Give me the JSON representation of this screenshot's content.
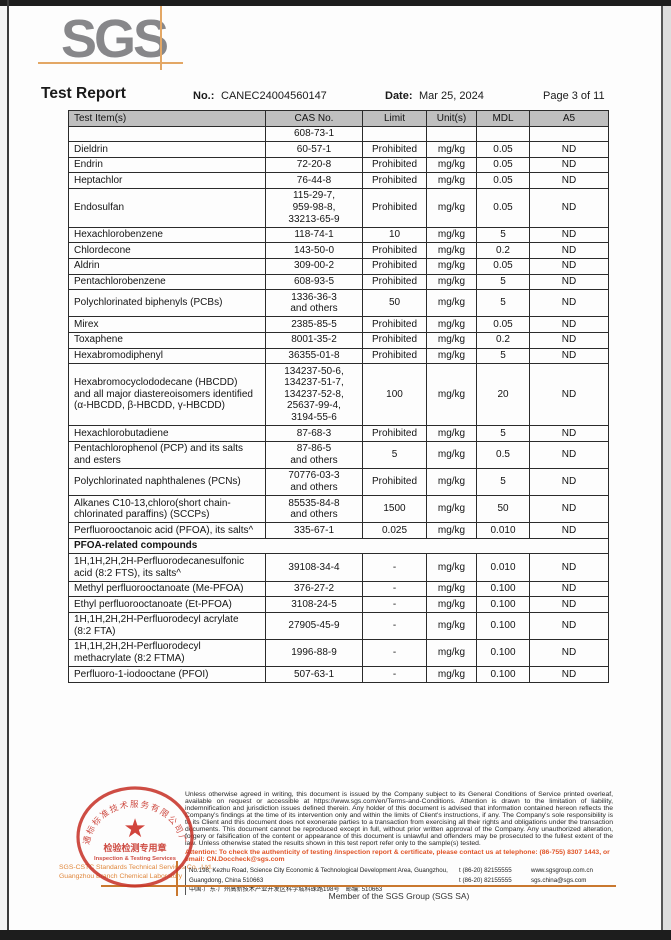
{
  "logo": {
    "text": "SGS"
  },
  "header": {
    "title": "Test Report",
    "no_label": "No.:",
    "no_value": "CANEC24004560147",
    "date_label": "Date:",
    "date_value": "Mar 25, 2024",
    "page_label": "Page 3 of 11"
  },
  "table": {
    "columns": [
      "Test Item(s)",
      "CAS No.",
      "Limit",
      "Unit(s)",
      "MDL",
      "A5"
    ],
    "rows": [
      {
        "item": "",
        "cas": "608-73-1",
        "limit": "",
        "unit": "",
        "mdl": "",
        "a5": ""
      },
      {
        "item": "Dieldrin",
        "cas": "60-57-1",
        "limit": "Prohibited",
        "unit": "mg/kg",
        "mdl": "0.05",
        "a5": "ND"
      },
      {
        "item": "Endrin",
        "cas": "72-20-8",
        "limit": "Prohibited",
        "unit": "mg/kg",
        "mdl": "0.05",
        "a5": "ND"
      },
      {
        "item": "Heptachlor",
        "cas": "76-44-8",
        "limit": "Prohibited",
        "unit": "mg/kg",
        "mdl": "0.05",
        "a5": "ND"
      },
      {
        "item": "Endosulfan",
        "cas": "115-29-7,\n959-98-8,\n33213-65-9",
        "limit": "Prohibited",
        "unit": "mg/kg",
        "mdl": "0.05",
        "a5": "ND"
      },
      {
        "item": "Hexachlorobenzene",
        "cas": "118-74-1",
        "limit": "10",
        "unit": "mg/kg",
        "mdl": "5",
        "a5": "ND"
      },
      {
        "item": "Chlordecone",
        "cas": "143-50-0",
        "limit": "Prohibited",
        "unit": "mg/kg",
        "mdl": "0.2",
        "a5": "ND"
      },
      {
        "item": "Aldrin",
        "cas": "309-00-2",
        "limit": "Prohibited",
        "unit": "mg/kg",
        "mdl": "0.05",
        "a5": "ND"
      },
      {
        "item": "Pentachlorobenzene",
        "cas": "608-93-5",
        "limit": "Prohibited",
        "unit": "mg/kg",
        "mdl": "5",
        "a5": "ND"
      },
      {
        "item": "Polychlorinated biphenyls (PCBs)",
        "cas": "1336-36-3\nand others",
        "limit": "50",
        "unit": "mg/kg",
        "mdl": "5",
        "a5": "ND"
      },
      {
        "item": "Mirex",
        "cas": "2385-85-5",
        "limit": "Prohibited",
        "unit": "mg/kg",
        "mdl": "0.05",
        "a5": "ND"
      },
      {
        "item": "Toxaphene",
        "cas": "8001-35-2",
        "limit": "Prohibited",
        "unit": "mg/kg",
        "mdl": "0.2",
        "a5": "ND"
      },
      {
        "item": "Hexabromodiphenyl",
        "cas": "36355-01-8",
        "limit": "Prohibited",
        "unit": "mg/kg",
        "mdl": "5",
        "a5": "ND"
      },
      {
        "item": "Hexabromocyclododecane (HBCDD)\nand all major diastereoisomers identified\n(α-HBCDD, β-HBCDD, γ-HBCDD)",
        "cas": "134237-50-6,\n134237-51-7,\n134237-52-8,\n25637-99-4,\n3194-55-6",
        "limit": "100",
        "unit": "mg/kg",
        "mdl": "20",
        "a5": "ND"
      },
      {
        "item": "Hexachlorobutadiene",
        "cas": "87-68-3",
        "limit": "Prohibited",
        "unit": "mg/kg",
        "mdl": "5",
        "a5": "ND"
      },
      {
        "item": "Pentachlorophenol (PCP) and its salts\nand esters",
        "cas": "87-86-5\nand others",
        "limit": "5",
        "unit": "mg/kg",
        "mdl": "0.5",
        "a5": "ND"
      },
      {
        "item": "Polychlorinated naphthalenes (PCNs)",
        "cas": "70776-03-3\nand others",
        "limit": "Prohibited",
        "unit": "mg/kg",
        "mdl": "5",
        "a5": "ND"
      },
      {
        "item": "Alkanes C10-13,chloro(short chain-\nchlorinated paraffins) (SCCPs)",
        "cas": "85535-84-8\nand others",
        "limit": "1500",
        "unit": "mg/kg",
        "mdl": "50",
        "a5": "ND"
      },
      {
        "item": "Perfluorooctanoic acid (PFOA), its salts^",
        "cas": "335-67-1",
        "limit": "0.025",
        "unit": "mg/kg",
        "mdl": "0.010",
        "a5": "ND"
      },
      {
        "section": "PFOA-related compounds"
      },
      {
        "item": "1H,1H,2H,2H-Perfluorodecanesulfonic\nacid (8:2 FTS), its salts^",
        "cas": "39108-34-4",
        "limit": "-",
        "unit": "mg/kg",
        "mdl": "0.010",
        "a5": "ND"
      },
      {
        "item": "Methyl perfluorooctanoate (Me-PFOA)",
        "cas": "376-27-2",
        "limit": "-",
        "unit": "mg/kg",
        "mdl": "0.100",
        "a5": "ND"
      },
      {
        "item": "Ethyl perfluorooctanoate (Et-PFOA)",
        "cas": "3108-24-5",
        "limit": "-",
        "unit": "mg/kg",
        "mdl": "0.100",
        "a5": "ND"
      },
      {
        "item": "1H,1H,2H,2H-Perfluorodecyl acrylate\n(8:2 FTA)",
        "cas": "27905-45-9",
        "limit": "-",
        "unit": "mg/kg",
        "mdl": "0.100",
        "a5": "ND"
      },
      {
        "item": "1H,1H,2H,2H-Perfluorodecyl\nmethacrylate (8:2 FTMA)",
        "cas": "1996-88-9",
        "limit": "-",
        "unit": "mg/kg",
        "mdl": "0.100",
        "a5": "ND"
      },
      {
        "item": "Perfluoro-1-iodooctane (PFOI)",
        "cas": "507-63-1",
        "limit": "-",
        "unit": "mg/kg",
        "mdl": "0.100",
        "a5": "ND"
      }
    ]
  },
  "footer": {
    "disclaimer": "Unless otherwise agreed in writing, this document is issued by the Company subject to its General Conditions of Service printed overleaf, available on request or accessible at https://www.sgs.com/en/Terms-and-Conditions. Attention is drawn to the limitation of liability, indemnification and jurisdiction issues defined therein. Any holder of this document is advised that information contained hereon reflects the Company's findings at the time of its intervention only and within the limits of Client's instructions, if any. The Company's sole responsibility is to its Client and this document does not exonerate parties to a transaction from exercising all their rights and obligations under the transaction documents. This document cannot be reproduced except in full, without prior written approval of the Company. Any unauthorized alteration, forgery or falsification of the content or appearance of this document is unlawful and offenders may be prosecuted to the fullest extent of the law. Unless otherwise stated the results shown in this test report refer only to the sample(s) tested.",
    "attention": "Attention: To check the authenticity of testing /inspection report & certificate, please contact us at telephone: (86-755) 8307 1443, or email: CN.Doccheck@sgs.com",
    "company_en_1": "SGS-CSTC Standards Technical Services Co., Ltd.",
    "company_en_2": "Guangzhou Branch  Chemical Laboratory",
    "address_en": "No.198, Kezhu Road, Science City Economic & Technological Development Area, Guangzhou, Guangdong, China 510663",
    "address_cn": "中国·广东·广州高新技术产业开发区科学城科珠路198号　邮编: 510663",
    "tel_en": "t (86-20) 82155555",
    "tel_cn": "t (86-20) 82155555",
    "website": "www.sgsgroup.com.cn",
    "email": "sgs.china@sgs.com",
    "member": "Member of the SGS Group (SGS SA)",
    "stamp_ring": "通标标准技术服务有限公司广州分公司",
    "stamp_cn": "检验检测专用章",
    "stamp_en": "Inspection & Testing Services",
    "stamp_star": "★"
  },
  "colors": {
    "accent_orange": "#e3a765",
    "rule_orange": "#c9782f",
    "attention_red": "#e05426",
    "stamp_red": "#c8352b",
    "table_header_gray": "#bfbfbf",
    "logo_gray": "#87878a"
  }
}
